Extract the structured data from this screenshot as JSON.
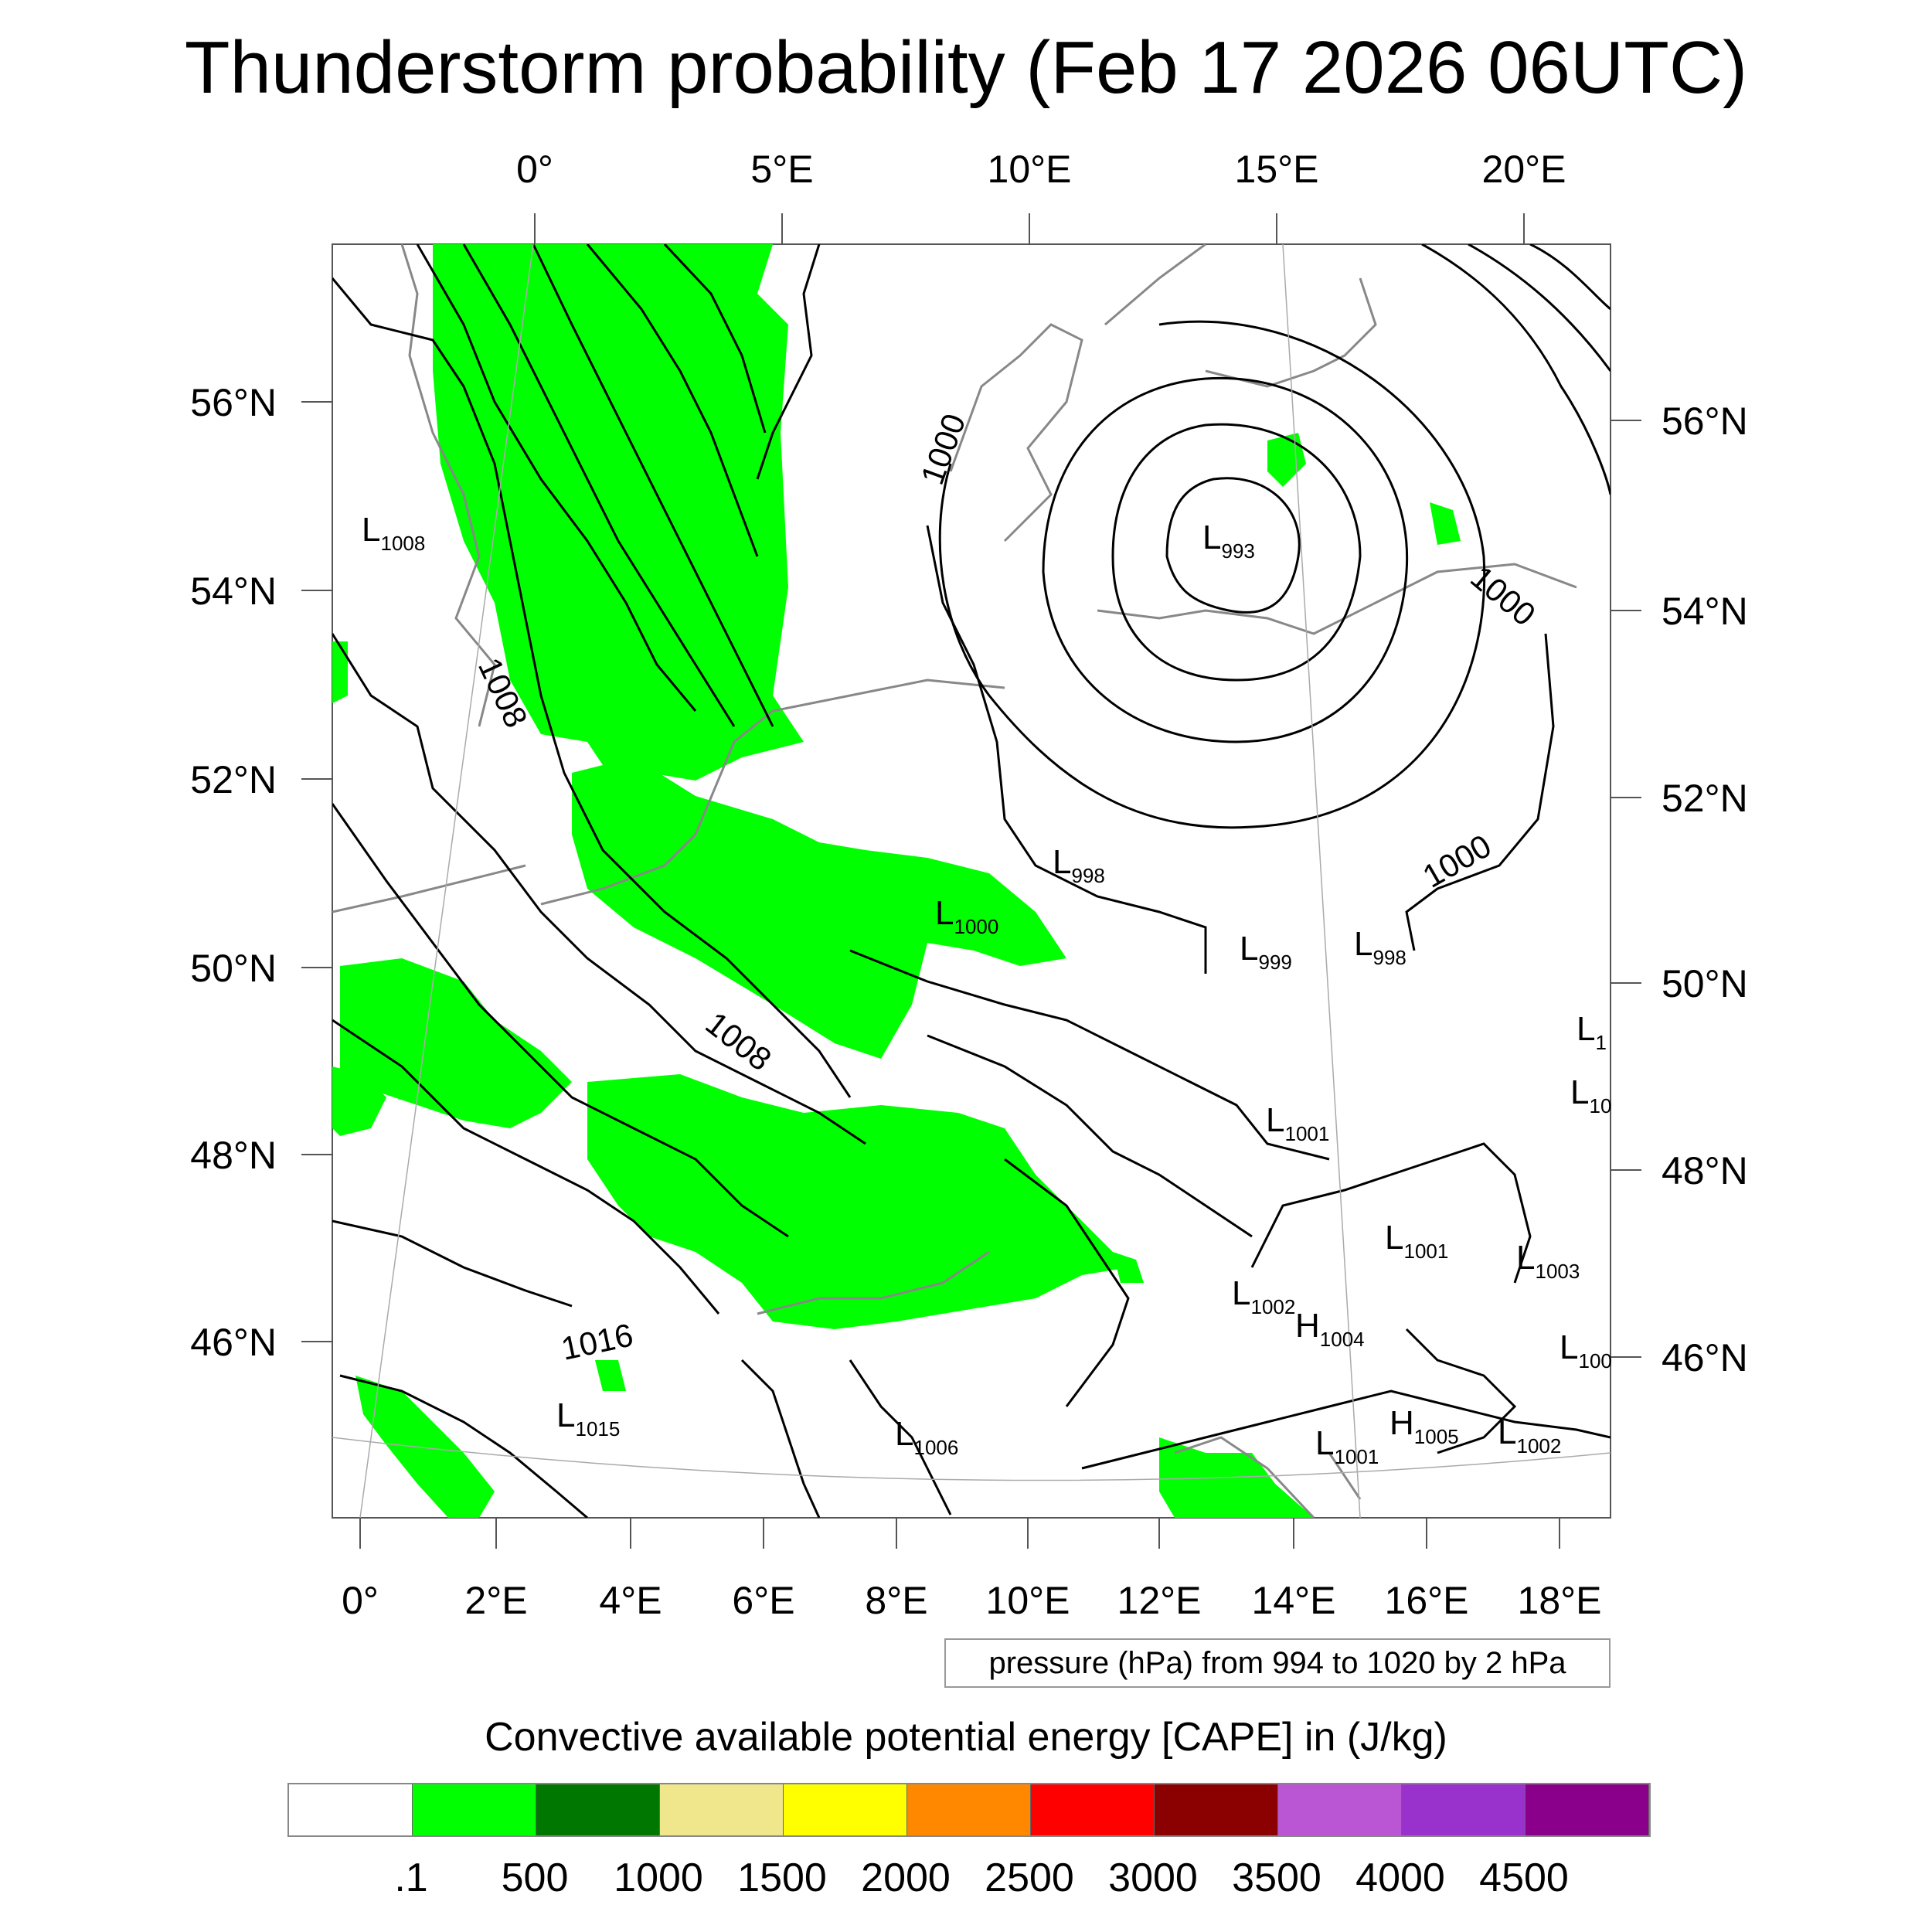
{
  "title": "Thunderstorm probability (Feb 17 2026 06UTC)",
  "map": {
    "top_lon_labels": [
      "0°",
      "5°E",
      "10°E",
      "15°E",
      "20°E"
    ],
    "bottom_lon_labels": [
      "0°",
      "2°E",
      "4°E",
      "6°E",
      "8°E",
      "10°E",
      "12°E",
      "14°E",
      "16°E",
      "18°E"
    ],
    "left_lat_labels": [
      "56°N",
      "54°N",
      "52°N",
      "50°N",
      "48°N",
      "46°N"
    ],
    "right_lat_labels": [
      "56°N",
      "54°N",
      "52°N",
      "50°N",
      "48°N",
      "46°N"
    ],
    "contour_labels": [
      "1000",
      "1000",
      "1000",
      "1008",
      "1008",
      "1016"
    ],
    "pressure_centers": [
      {
        "type": "L",
        "value": "1008"
      },
      {
        "type": "L",
        "value": "993"
      },
      {
        "type": "L",
        "value": "998"
      },
      {
        "type": "L",
        "value": "1000"
      },
      {
        "type": "L",
        "value": "999"
      },
      {
        "type": "L",
        "value": "998"
      },
      {
        "type": "L",
        "value": "1001"
      },
      {
        "type": "L",
        "value": "1001"
      },
      {
        "type": "L",
        "value": "1003"
      },
      {
        "type": "L",
        "value": "1002"
      },
      {
        "type": "H",
        "value": "1004"
      },
      {
        "type": "L",
        "value": "1015"
      },
      {
        "type": "L",
        "value": "1006"
      },
      {
        "type": "L",
        "value": "1001"
      },
      {
        "type": "H",
        "value": "1005"
      },
      {
        "type": "L",
        "value": "1002"
      },
      {
        "type": "L",
        "value": "100"
      },
      {
        "type": "L",
        "value": "1"
      },
      {
        "type": "L",
        "value": "10"
      }
    ],
    "colors": {
      "cape_fill": "#00ff00",
      "coastline": "#888888",
      "isobar": "#000000"
    }
  },
  "info_text": "pressure (hPa) from 994 to 1020 by 2 hPa",
  "colorbar": {
    "title": "Convective available potential energy [CAPE] in (J/kg)",
    "colors": [
      "#ffffff",
      "#00ff00",
      "#007700",
      "#f0e68c",
      "#ffff00",
      "#ff8800",
      "#ff0000",
      "#8b0000",
      "#ba55d3",
      "#9932cc",
      "#8b008b"
    ],
    "ticks": [
      ".1",
      "500",
      "1000",
      "1500",
      "2000",
      "2500",
      "3000",
      "3500",
      "4000",
      "4500"
    ]
  }
}
